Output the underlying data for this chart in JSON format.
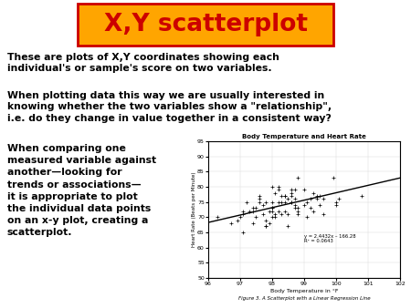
{
  "title_text": "X,Y scatterplot",
  "title_color": "#CC0000",
  "title_bg": "#FFA500",
  "title_border": "#CC0000",
  "body_text1": "These are plots of X,Y coordinates showing each\nindividual's or sample's score on two variables.",
  "body_text2": "When plotting data this way we are usually interested in\nknowing whether the two variables show a \"relationship\",\ni.e. do they change in value together in a consistent way?",
  "body_text3": "When comparing one\nmeasured variable against\nanother—looking for\ntrends or associations—\nit is appropriate to plot\nthe individual data points\non an x-y plot, creating a\nscatterplot.",
  "scatter_title": "Body Temperature and Heart Rate",
  "scatter_xlabel": "Body Temperature in °F",
  "scatter_ylabel": "Heart Rate (Beats per Minute)",
  "scatter_equation": "y = 2.4432x – 166.28",
  "scatter_r2": "R² = 0.0643",
  "figure_caption": "Figure 3. A Scatterplot with a Linear Regression Line",
  "xlim": [
    96,
    102
  ],
  "ylim": [
    50,
    95
  ],
  "xticks": [
    96,
    97,
    98,
    99,
    100,
    101,
    102
  ],
  "yticks": [
    50,
    55,
    60,
    65,
    70,
    75,
    80,
    85,
    90,
    95
  ],
  "regression_slope": 2.4432,
  "regression_intercept": -166.28,
  "bg_color": "#ffffff",
  "scatter_data_x": [
    96.3,
    96.7,
    96.9,
    97.0,
    97.1,
    97.1,
    97.1,
    97.2,
    97.3,
    97.4,
    97.4,
    97.4,
    97.5,
    97.5,
    97.6,
    97.6,
    97.6,
    97.7,
    97.7,
    97.8,
    97.8,
    97.8,
    97.8,
    97.9,
    97.9,
    98.0,
    98.0,
    98.0,
    98.0,
    98.0,
    98.0,
    98.1,
    98.1,
    98.1,
    98.2,
    98.2,
    98.2,
    98.2,
    98.3,
    98.3,
    98.3,
    98.4,
    98.4,
    98.4,
    98.4,
    98.5,
    98.5,
    98.5,
    98.6,
    98.6,
    98.6,
    98.6,
    98.6,
    98.7,
    98.7,
    98.7,
    98.7,
    98.8,
    98.8,
    98.8,
    98.8,
    99.0,
    99.0,
    99.1,
    99.1,
    99.2,
    99.2,
    99.3,
    99.3,
    99.4,
    99.4,
    99.5,
    99.5,
    99.6,
    99.6,
    99.9,
    100.0,
    100.0,
    100.1,
    100.8
  ],
  "scatter_data_y": [
    70,
    68,
    69,
    70,
    71,
    72,
    65,
    75,
    72,
    68,
    73,
    72,
    73,
    70,
    75,
    77,
    76,
    71,
    74,
    67,
    69,
    67,
    75,
    68,
    72,
    72,
    75,
    73,
    80,
    73,
    70,
    78,
    71,
    70,
    72,
    75,
    80,
    79,
    77,
    71,
    75,
    72,
    75,
    77,
    77,
    76,
    67,
    71,
    75,
    79,
    77,
    78,
    75,
    76,
    79,
    74,
    73,
    83,
    72,
    73,
    71,
    74,
    79,
    70,
    75,
    73,
    76,
    78,
    72,
    76,
    77,
    74,
    77,
    76,
    71,
    83,
    75,
    74,
    76,
    77
  ]
}
